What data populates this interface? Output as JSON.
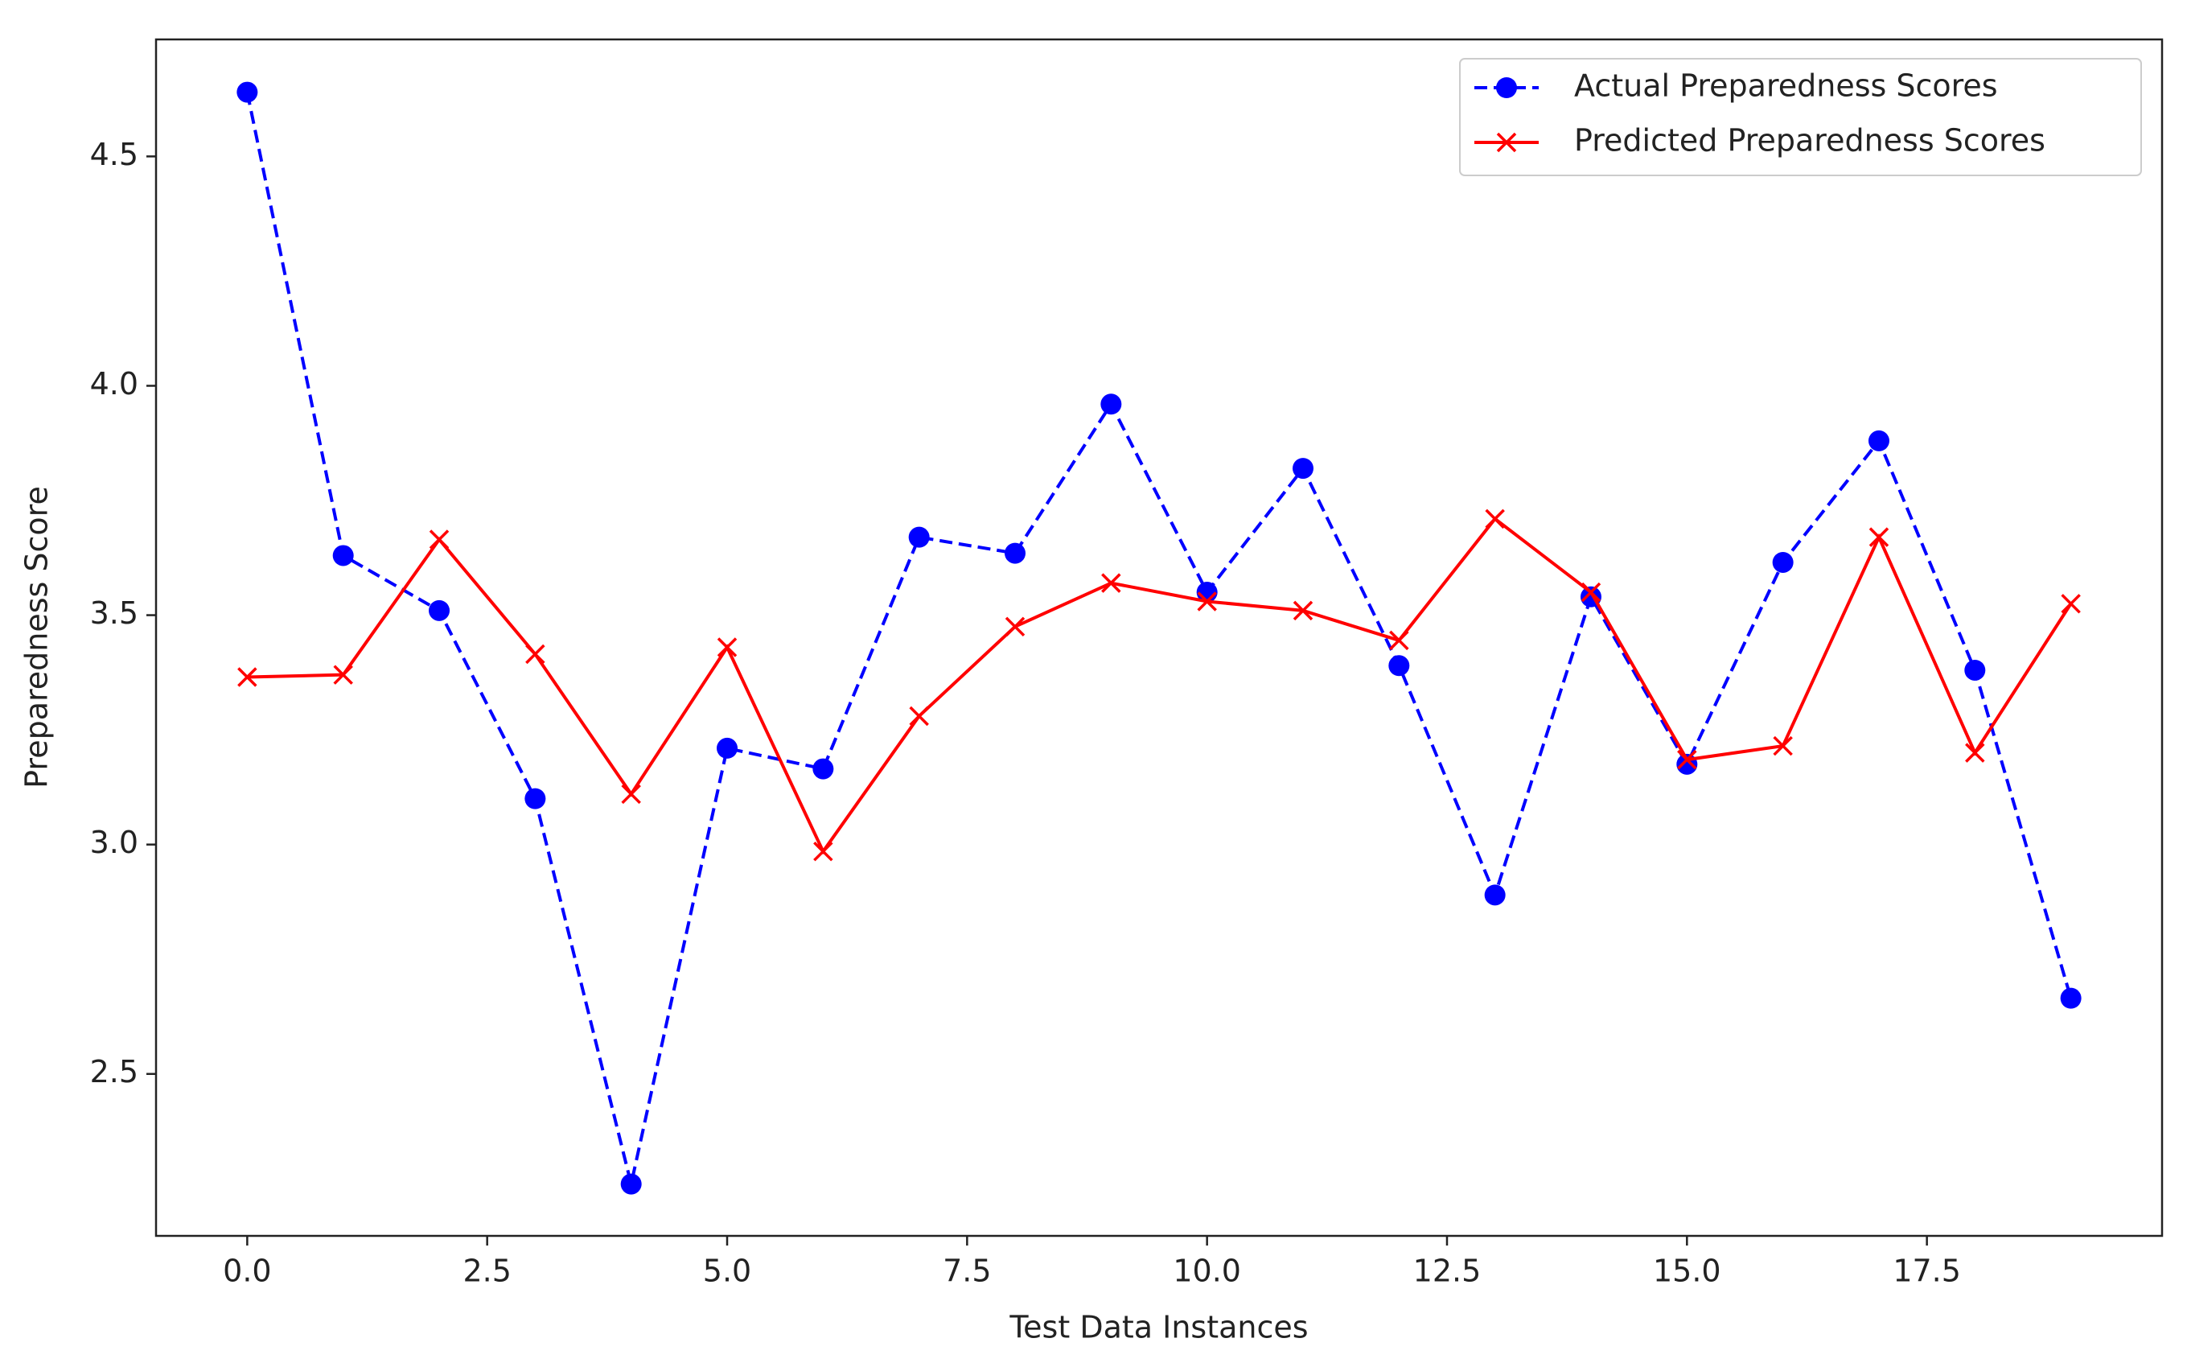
{
  "chart_data": {
    "type": "line",
    "x_label": "Test Data Instances",
    "y_label": "Preparedness Score",
    "x": [
      0,
      1,
      2,
      3,
      4,
      5,
      6,
      7,
      8,
      9,
      10,
      11,
      12,
      13,
      14,
      15,
      16,
      17,
      18,
      19
    ],
    "series": [
      {
        "name": "Actual Preparedness Scores",
        "color": "#0000ff",
        "linestyle": "dashed",
        "marker": "circle",
        "values": [
          4.64,
          3.63,
          3.51,
          3.1,
          2.26,
          3.21,
          3.165,
          3.67,
          3.635,
          3.96,
          3.55,
          3.82,
          3.39,
          2.89,
          3.54,
          3.175,
          3.615,
          3.88,
          3.38,
          2.665
        ]
      },
      {
        "name": "Predicted Preparedness Scores",
        "color": "#ff0000",
        "linestyle": "solid",
        "marker": "x",
        "values": [
          3.365,
          3.37,
          3.665,
          3.415,
          3.11,
          3.43,
          2.985,
          3.28,
          3.475,
          3.57,
          3.53,
          3.51,
          3.445,
          3.71,
          3.55,
          3.185,
          3.215,
          3.67,
          3.2,
          3.525
        ]
      }
    ],
    "xlim": [
      -0.95,
      19.95
    ],
    "xticks": [
      {
        "value": 0,
        "label": "0.0"
      },
      2.5,
      {
        "value": 5,
        "label": "5.0"
      },
      7.5,
      {
        "value": 10,
        "label": "10.0"
      },
      12.5,
      {
        "value": 15,
        "label": "15.0"
      },
      17.5
    ],
    "ylim": [
      2.147,
      4.755
    ],
    "yticks": [
      2.5,
      {
        "value": 3,
        "label": "3.0"
      },
      3.5,
      {
        "value": 4,
        "label": "4.0"
      },
      4.5
    ],
    "legend": "upper right",
    "grid": false
  }
}
